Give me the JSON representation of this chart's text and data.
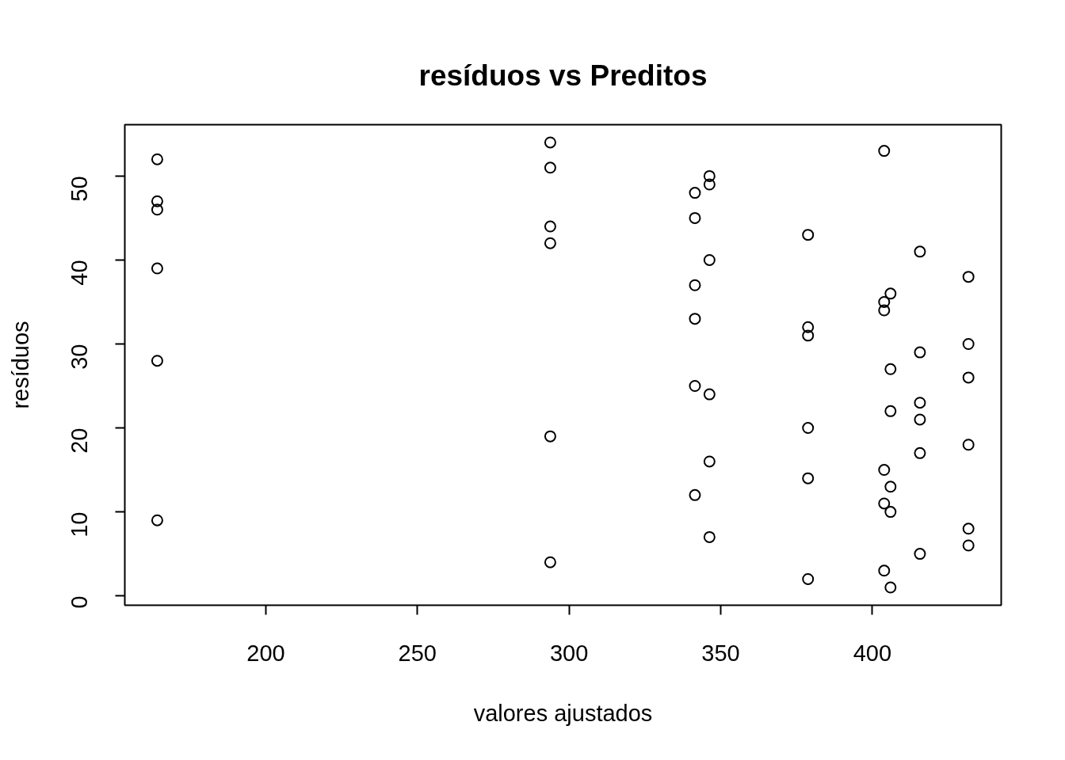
{
  "chart_data": {
    "type": "scatter",
    "title": "resíduos vs Preditos",
    "xlabel": "valores ajustados",
    "ylabel": "resíduos",
    "x": [
      164.2,
      164.2,
      164.2,
      164.2,
      164.2,
      164.2,
      293.8,
      293.8,
      293.8,
      293.8,
      293.8,
      293.8,
      341.5,
      341.5,
      341.5,
      341.5,
      341.5,
      341.5,
      346.3,
      346.3,
      346.3,
      346.3,
      346.3,
      346.3,
      378.8,
      378.8,
      378.8,
      378.8,
      378.8,
      378.8,
      403.9,
      403.9,
      403.9,
      403.9,
      403.9,
      403.9,
      406.0,
      406.0,
      406.0,
      406.0,
      406.0,
      406.0,
      415.7,
      415.7,
      415.7,
      415.7,
      415.7,
      415.7,
      431.7,
      431.7,
      431.7,
      431.7,
      431.7,
      431.7
    ],
    "series": [
      {
        "color": "#000000",
        "values": [
          52,
          47,
          46,
          39,
          28,
          9,
          54,
          51,
          44,
          42,
          19,
          4,
          48,
          45,
          37,
          33,
          25,
          12,
          50,
          49,
          40,
          24,
          16,
          7,
          43,
          32,
          31,
          20,
          14,
          2,
          53,
          35,
          34,
          15,
          11,
          3,
          36,
          27,
          22,
          13,
          10,
          1,
          41,
          29,
          23,
          21,
          17,
          5,
          38,
          30,
          26,
          18,
          8,
          6
        ]
      }
    ],
    "xlim": [
      153.5,
      442.5
    ],
    "xticks": [
      200,
      250,
      300,
      350,
      400
    ],
    "ylim": [
      -1.12,
      56.12
    ],
    "yticks": [
      0,
      10,
      20,
      30,
      40,
      50
    ],
    "marker": "circle",
    "grid": false
  }
}
